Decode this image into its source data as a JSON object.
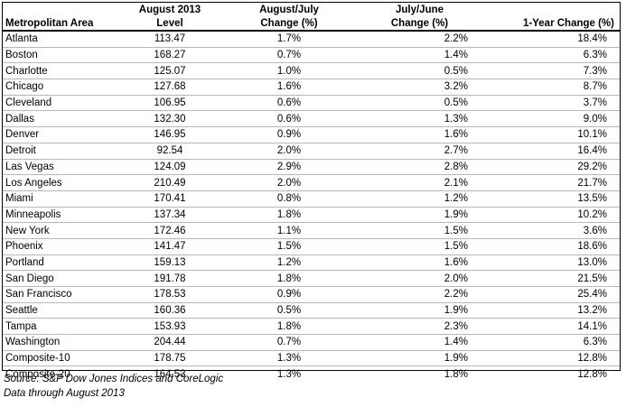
{
  "headers": {
    "row1": [
      "",
      "August 2013",
      "August/July",
      "July/June",
      ""
    ],
    "row2": [
      "Metropolitan Area",
      "Level",
      "Change (%)",
      "Change (%)",
      "1-Year Change (%)"
    ]
  },
  "rows": [
    {
      "area": "Atlanta",
      "level": "113.47",
      "aug_jul": "1.7%",
      "jul_jun": "2.2%",
      "yoy": "18.4%"
    },
    {
      "area": "Boston",
      "level": "168.27",
      "aug_jul": "0.7%",
      "jul_jun": "1.4%",
      "yoy": "6.3%"
    },
    {
      "area": "Charlotte",
      "level": "125.07",
      "aug_jul": "1.0%",
      "jul_jun": "0.5%",
      "yoy": "7.3%"
    },
    {
      "area": "Chicago",
      "level": "127.68",
      "aug_jul": "1.6%",
      "jul_jun": "3.2%",
      "yoy": "8.7%"
    },
    {
      "area": "Cleveland",
      "level": "106.95",
      "aug_jul": "0.6%",
      "jul_jun": "0.5%",
      "yoy": "3.7%"
    },
    {
      "area": "Dallas",
      "level": "132.30",
      "aug_jul": "0.6%",
      "jul_jun": "1.3%",
      "yoy": "9.0%"
    },
    {
      "area": "Denver",
      "level": "146.95",
      "aug_jul": "0.9%",
      "jul_jun": "1.6%",
      "yoy": "10.1%"
    },
    {
      "area": "Detroit",
      "level": "92.54",
      "aug_jul": "2.0%",
      "jul_jun": "2.7%",
      "yoy": "16.4%"
    },
    {
      "area": "Las Vegas",
      "level": "124.09",
      "aug_jul": "2.9%",
      "jul_jun": "2.8%",
      "yoy": "29.2%"
    },
    {
      "area": "Los Angeles",
      "level": "210.49",
      "aug_jul": "2.0%",
      "jul_jun": "2.1%",
      "yoy": "21.7%"
    },
    {
      "area": "Miami",
      "level": "170.41",
      "aug_jul": "0.8%",
      "jul_jun": "1.2%",
      "yoy": "13.5%"
    },
    {
      "area": "Minneapolis",
      "level": "137.34",
      "aug_jul": "1.8%",
      "jul_jun": "1.9%",
      "yoy": "10.2%"
    },
    {
      "area": "New York",
      "level": "172.46",
      "aug_jul": "1.1%",
      "jul_jun": "1.5%",
      "yoy": "3.6%"
    },
    {
      "area": "Phoenix",
      "level": "141.47",
      "aug_jul": "1.5%",
      "jul_jun": "1.5%",
      "yoy": "18.6%"
    },
    {
      "area": "Portland",
      "level": "159.13",
      "aug_jul": "1.2%",
      "jul_jun": "1.6%",
      "yoy": "13.0%"
    },
    {
      "area": "San Diego",
      "level": "191.78",
      "aug_jul": "1.8%",
      "jul_jun": "2.0%",
      "yoy": "21.5%"
    },
    {
      "area": "San Francisco",
      "level": "178.53",
      "aug_jul": "0.9%",
      "jul_jun": "2.2%",
      "yoy": "25.4%"
    },
    {
      "area": "Seattle",
      "level": "160.36",
      "aug_jul": "0.5%",
      "jul_jun": "1.9%",
      "yoy": "13.2%"
    },
    {
      "area": "Tampa",
      "level": "153.93",
      "aug_jul": "1.8%",
      "jul_jun": "2.3%",
      "yoy": "14.1%"
    },
    {
      "area": "Washington",
      "level": "204.44",
      "aug_jul": "0.7%",
      "jul_jun": "1.4%",
      "yoy": "6.3%"
    },
    {
      "area": "Composite-10",
      "level": "178.75",
      "aug_jul": "1.3%",
      "jul_jun": "1.9%",
      "yoy": "12.8%"
    },
    {
      "area": "Composite-20",
      "level": "164.53",
      "aug_jul": "1.3%",
      "jul_jun": "1.8%",
      "yoy": "12.8%"
    }
  ],
  "notes": {
    "source": "Source: S&P Dow Jones Indices and CoreLogic",
    "through": "Data through August 2013"
  }
}
